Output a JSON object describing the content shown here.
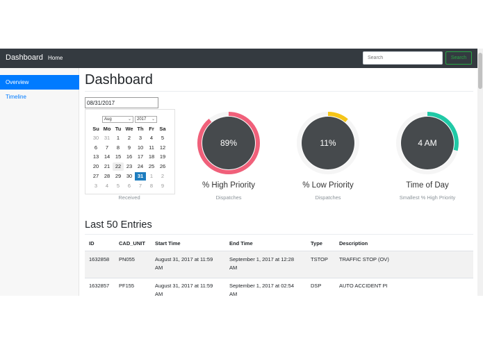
{
  "navbar": {
    "brand": "Dashboard",
    "home": "Home",
    "search_placeholder": "Search",
    "search_button": "Search"
  },
  "sidebar": {
    "items": [
      {
        "label": "Overview",
        "active": true
      },
      {
        "label": "Timeline",
        "active": false
      }
    ]
  },
  "main": {
    "title": "Dashboard",
    "date_value": "08/31/2017",
    "calendar": {
      "month": "Aug",
      "year": "2017",
      "weekdays": [
        "Su",
        "Mo",
        "Tu",
        "We",
        "Th",
        "Fr",
        "Sa"
      ],
      "weeks": [
        [
          "30",
          "31",
          "1",
          "2",
          "3",
          "4",
          "5"
        ],
        [
          "6",
          "7",
          "8",
          "9",
          "10",
          "11",
          "12"
        ],
        [
          "13",
          "14",
          "15",
          "16",
          "17",
          "18",
          "19"
        ],
        [
          "20",
          "21",
          "22",
          "23",
          "24",
          "25",
          "26"
        ],
        [
          "27",
          "28",
          "29",
          "30",
          "31",
          "1",
          "2"
        ],
        [
          "3",
          "4",
          "5",
          "6",
          "7",
          "8",
          "9"
        ]
      ],
      "selected_day": "31",
      "caption": "Received"
    },
    "metrics": [
      {
        "value_text": "89%",
        "fraction": 0.89,
        "label": "% High Priority",
        "sub": "Dispatches",
        "color": "#f0607a"
      },
      {
        "value_text": "11%",
        "fraction": 0.11,
        "label": "% Low Priority",
        "sub": "Dispatches",
        "color": "#f5c518"
      },
      {
        "value_text": "4 AM",
        "fraction": 0.29,
        "label": "Time of Day",
        "sub": "Smallest % High Priority",
        "color": "#20c9a6"
      }
    ],
    "donut_inner_color": "#464a4d",
    "entries_title": "Last 50 Entries",
    "table": {
      "headers": [
        "ID",
        "CAD_UNIT",
        "Start Time",
        "End Time",
        "Type",
        "Description"
      ],
      "rows": [
        {
          "id": "1632858",
          "unit": "PN055",
          "start": [
            "August 31, 2017 at 11:59",
            "AM"
          ],
          "end": [
            "September 1, 2017 at 12:28",
            "AM"
          ],
          "type": "TSTOP",
          "desc": "TRAFFIC STOP (OV)"
        },
        {
          "id": "1632857",
          "unit": "PF155",
          "start": [
            "August 31, 2017 at 11:59",
            "AM"
          ],
          "end": [
            "September 1, 2017 at 02:54",
            "AM"
          ],
          "type": "DSP",
          "desc": "AUTO ACCIDENT PI"
        }
      ]
    }
  }
}
